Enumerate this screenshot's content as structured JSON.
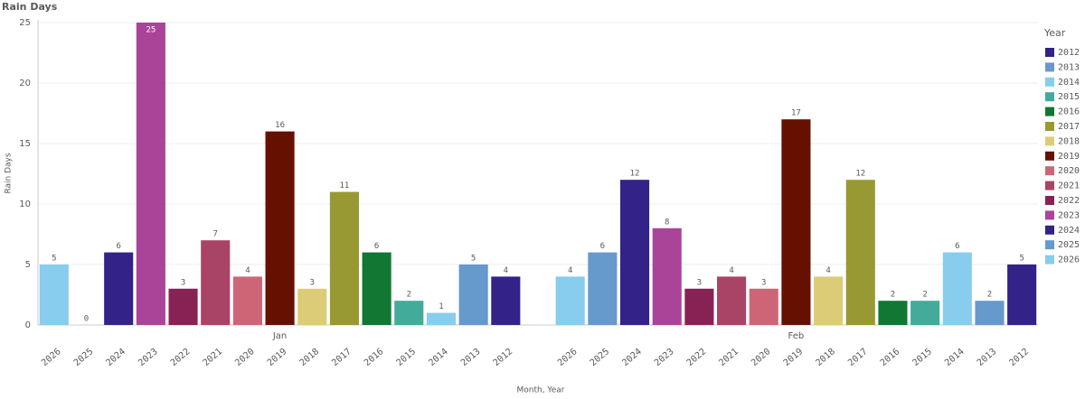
{
  "chart_data": {
    "type": "bar",
    "title": "Rain Days",
    "y_label": "Rain Days",
    "x_label": "Month, Year",
    "categories": [
      "2026",
      "2025",
      "2024",
      "2023",
      "2022",
      "2021",
      "2020",
      "2019",
      "2018",
      "2017",
      "2016",
      "2015",
      "2014",
      "2013",
      "2012"
    ],
    "groups": [
      {
        "name": "Jan",
        "values": [
          5,
          0,
          6,
          25,
          3,
          7,
          4,
          16,
          3,
          11,
          6,
          2,
          1,
          5,
          4
        ]
      },
      {
        "name": "Feb",
        "values": [
          4,
          6,
          12,
          8,
          3,
          4,
          3,
          17,
          4,
          12,
          2,
          2,
          6,
          2,
          5
        ]
      }
    ],
    "ylim": [
      0,
      25
    ],
    "yticks": [
      0,
      5,
      10,
      15,
      20,
      25
    ],
    "grid": true,
    "legend": {
      "title": "Year",
      "position": "right",
      "items": [
        {
          "name": "2012",
          "color": "#332288"
        },
        {
          "name": "2013",
          "color": "#6699cc"
        },
        {
          "name": "2014",
          "color": "#88ccee"
        },
        {
          "name": "2015",
          "color": "#44aa99"
        },
        {
          "name": "2016",
          "color": "#117733"
        },
        {
          "name": "2017",
          "color": "#999933"
        },
        {
          "name": "2018",
          "color": "#ddcc77"
        },
        {
          "name": "2019",
          "color": "#661100"
        },
        {
          "name": "2020",
          "color": "#cc6677"
        },
        {
          "name": "2021",
          "color": "#aa4466"
        },
        {
          "name": "2022",
          "color": "#882255"
        },
        {
          "name": "2023",
          "color": "#aa4499"
        },
        {
          "name": "2024",
          "color": "#332288"
        },
        {
          "name": "2025",
          "color": "#6699cc"
        },
        {
          "name": "2026",
          "color": "#88ccee"
        }
      ]
    }
  }
}
